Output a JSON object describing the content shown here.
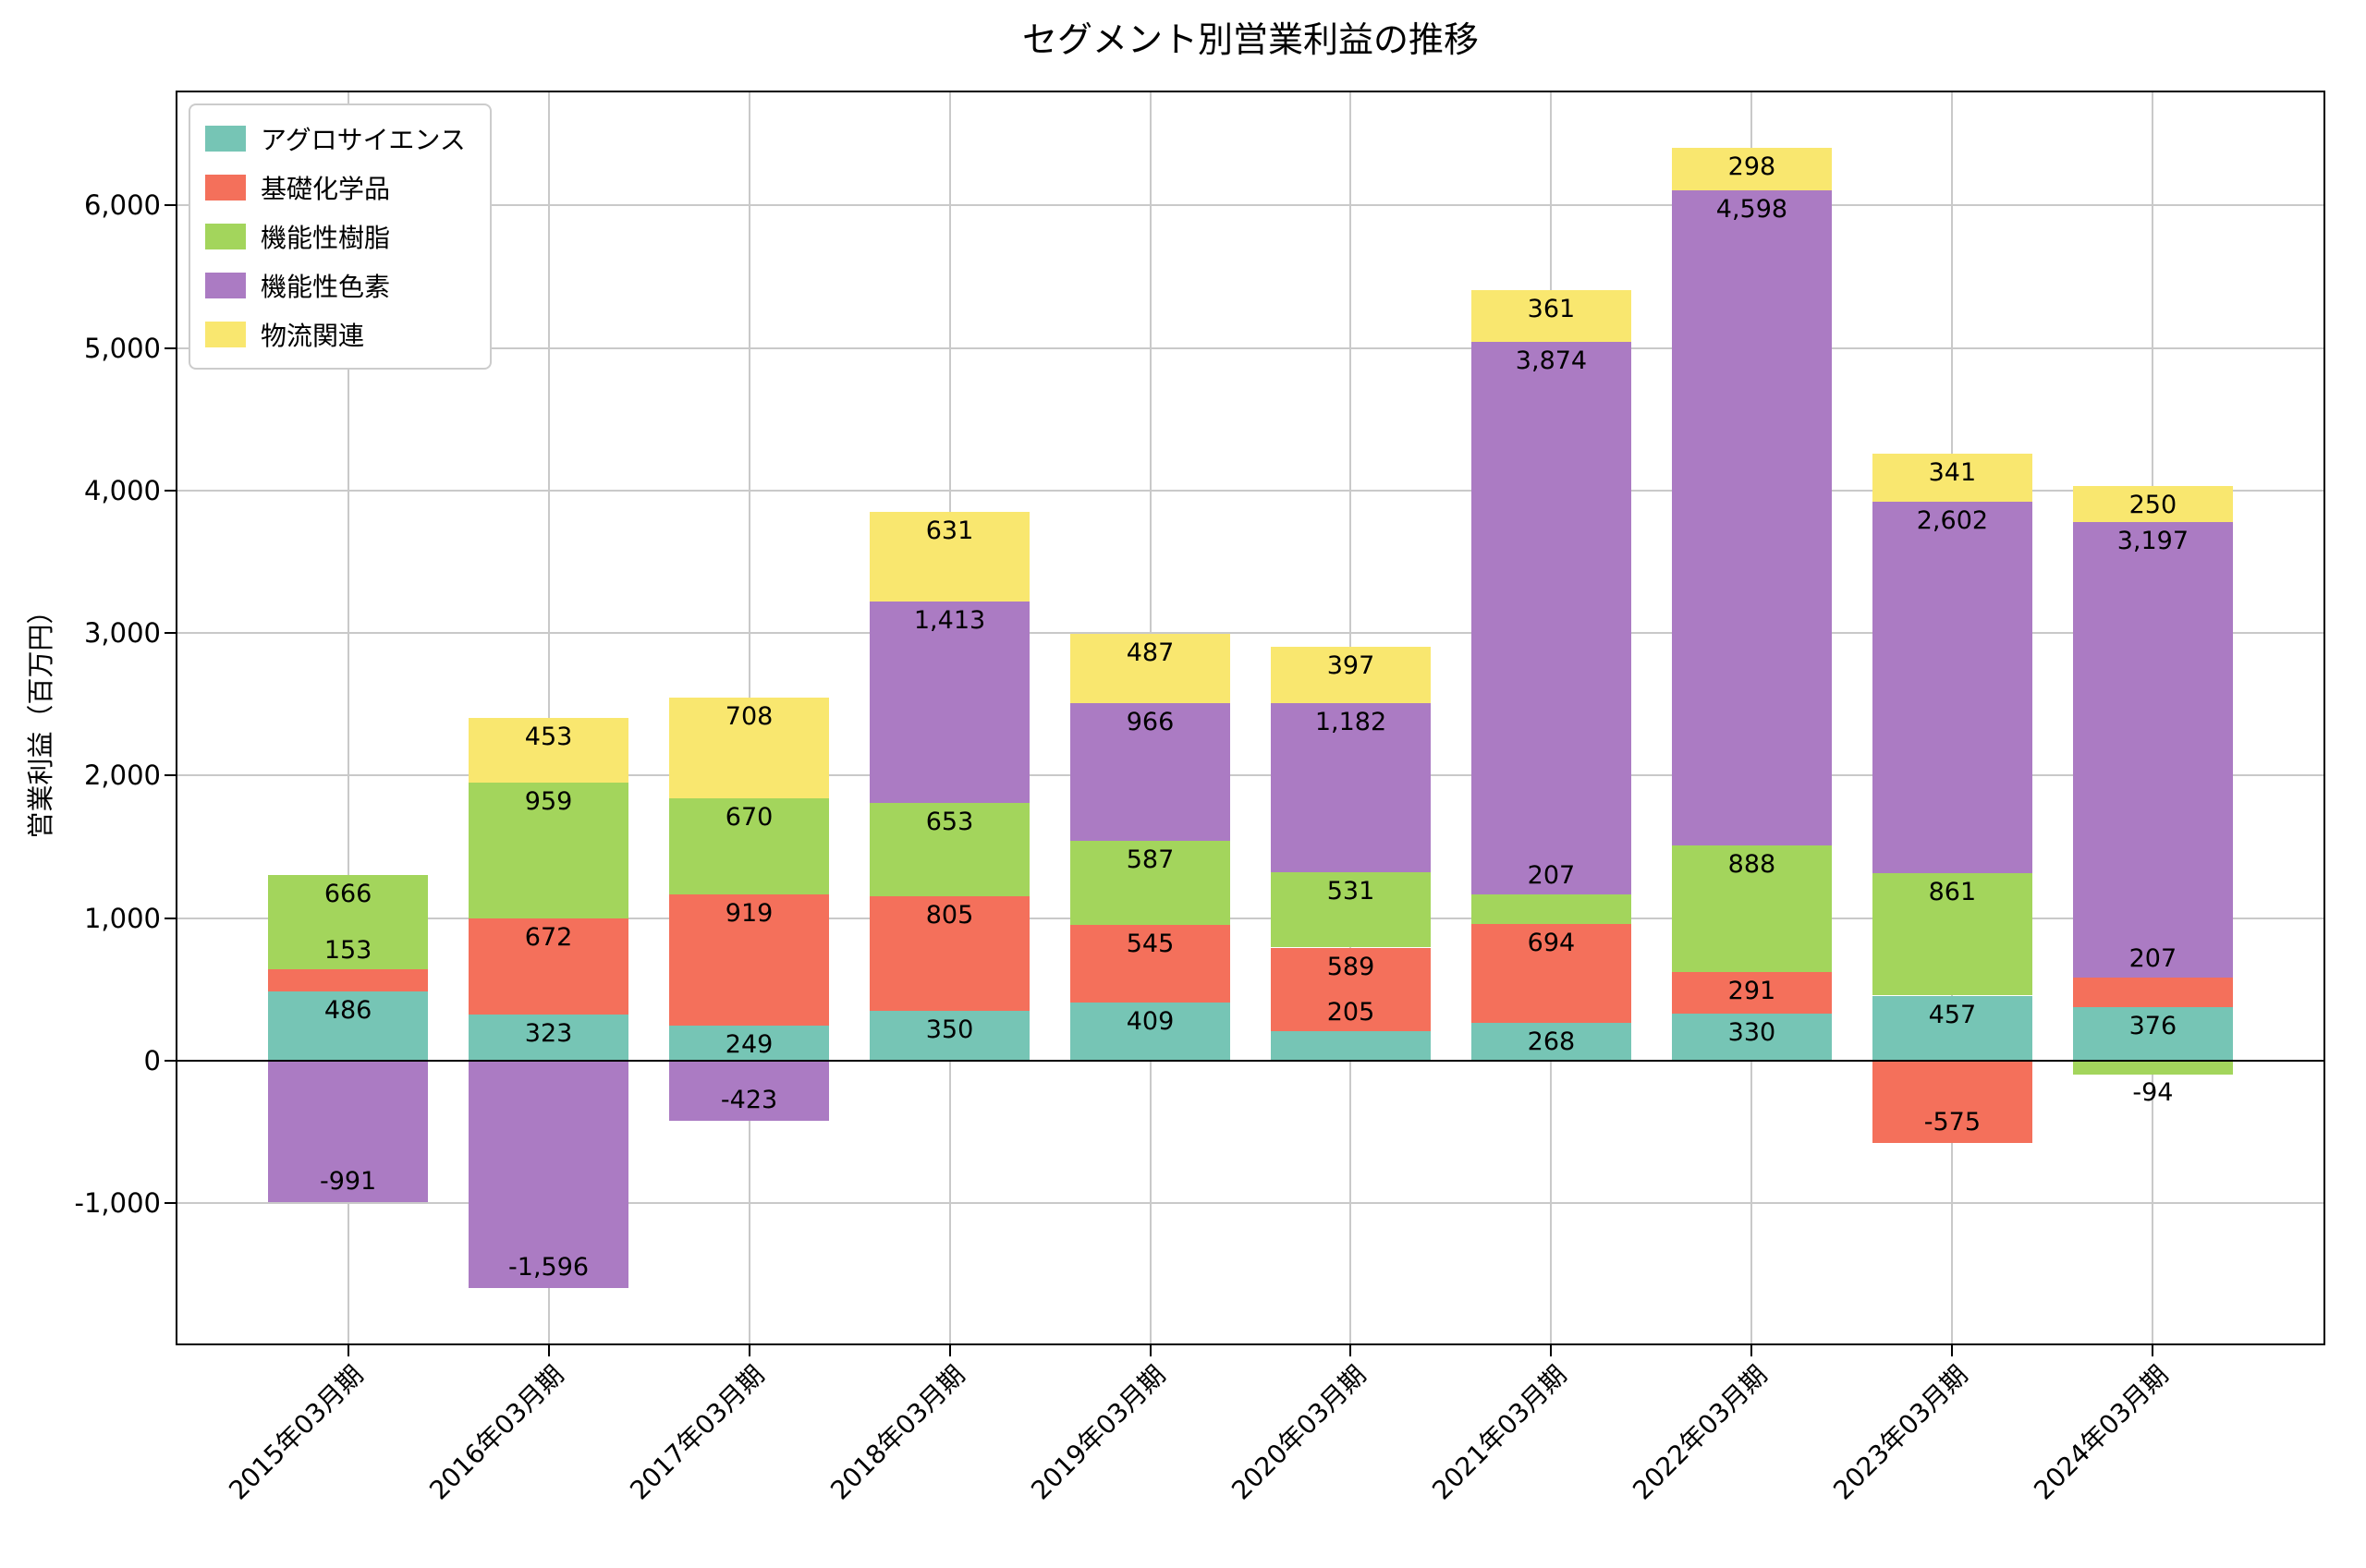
{
  "chart_data": {
    "type": "bar",
    "stacked": true,
    "title": "セグメント別営業利益の推移",
    "ylabel": "営業利益（百万円）",
    "xlabel": "",
    "grid": true,
    "legend_position": "upper left",
    "ylim": [
      -1996,
      6805
    ],
    "yticks": [
      -1000,
      0,
      1000,
      2000,
      3000,
      4000,
      5000,
      6000
    ],
    "categories": [
      "2015年03月期",
      "2016年03月期",
      "2017年03月期",
      "2018年03月期",
      "2019年03月期",
      "2020年03月期",
      "2021年03月期",
      "2022年03月期",
      "2023年03月期",
      "2024年03月期"
    ],
    "series": [
      {
        "name": "アグロサイエンス",
        "color": "#76C5B5",
        "values": [
          486,
          323,
          249,
          350,
          409,
          205,
          268,
          330,
          457,
          376
        ]
      },
      {
        "name": "基礎化学品",
        "color": "#F4705B",
        "values": [
          153,
          672,
          919,
          805,
          545,
          589,
          694,
          291,
          -575,
          207
        ]
      },
      {
        "name": "機能性樹脂",
        "color": "#A3D55C",
        "values": [
          666,
          959,
          670,
          653,
          587,
          531,
          207,
          888,
          861,
          -94
        ]
      },
      {
        "name": "機能性色素",
        "color": "#AB7BC3",
        "values": [
          -991,
          -1596,
          -423,
          1413,
          966,
          1182,
          3874,
          4598,
          2602,
          3197
        ]
      },
      {
        "name": "物流関連",
        "color": "#F9E76F",
        "values": [
          0,
          453,
          708,
          631,
          487,
          397,
          361,
          298,
          341,
          250
        ]
      }
    ],
    "colors": {
      "grid": "#c9c9c9",
      "axis": "#000000",
      "background": "#ffffff"
    }
  }
}
